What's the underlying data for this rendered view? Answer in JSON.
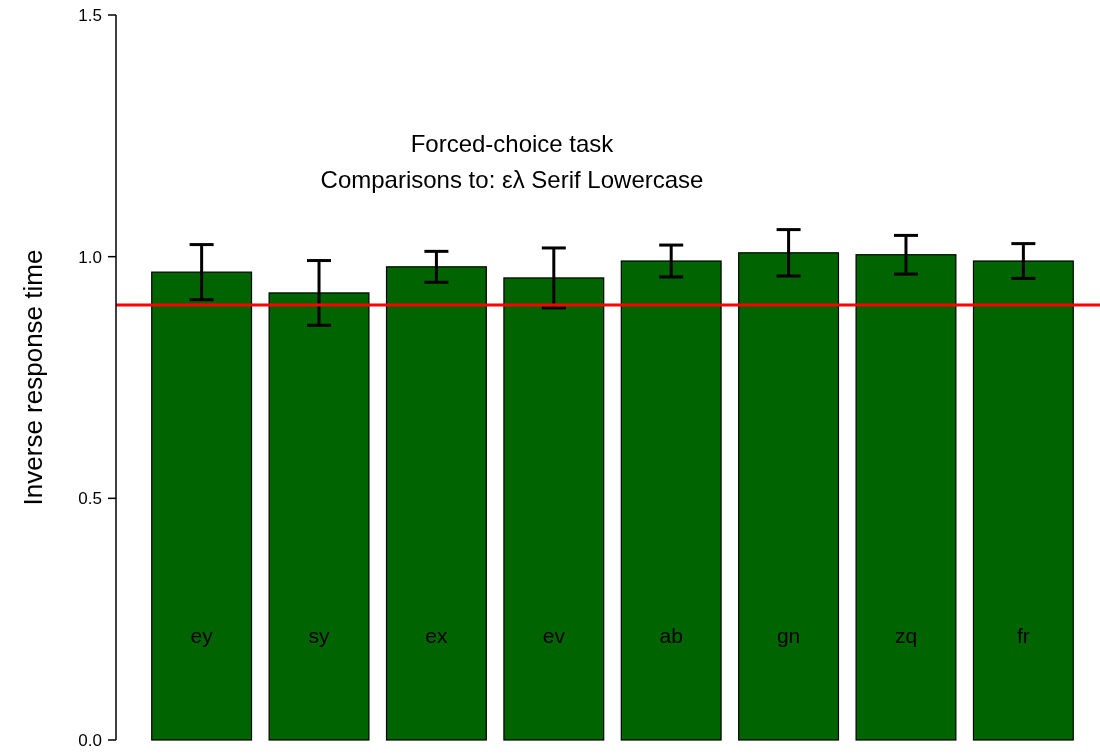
{
  "chart_data": {
    "type": "bar",
    "title": "Forced-choice task",
    "subtitle": "Comparisons to: ελ Serif Lowercase",
    "ylabel": "Inverse response time",
    "categories": [
      "ey",
      "sy",
      "ex",
      "ev",
      "ab",
      "gn",
      "zq",
      "fr"
    ],
    "values": [
      0.968,
      0.925,
      0.979,
      0.956,
      0.991,
      1.008,
      1.004,
      0.991
    ],
    "errors": [
      0.057,
      0.067,
      0.032,
      0.062,
      0.033,
      0.048,
      0.04,
      0.036
    ],
    "color": "#006400",
    "ylim": [
      0,
      1.5
    ],
    "yticks": [
      {
        "value": 0,
        "label": "0.0"
      },
      {
        "value": 0.5,
        "label": "0.5"
      },
      {
        "value": 1,
        "label": "1.0"
      },
      {
        "value": 1.5,
        "label": "1.5"
      }
    ],
    "grid": false,
    "ref_lines": [
      {
        "axis": "y",
        "value": 0.9,
        "color": "#ff0000"
      }
    ]
  }
}
